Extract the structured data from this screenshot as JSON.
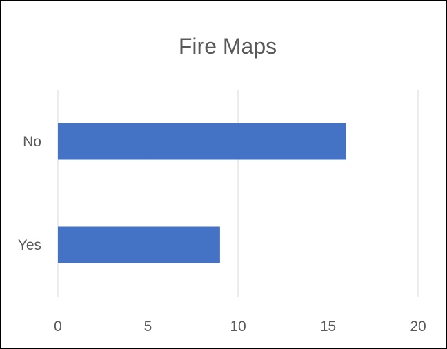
{
  "chart_data": {
    "type": "bar",
    "orientation": "horizontal",
    "title": "Fire Maps",
    "categories": [
      "Yes",
      "No"
    ],
    "values": [
      9,
      16
    ],
    "xlabel": "",
    "ylabel": "",
    "xlim": [
      0,
      20
    ],
    "x_ticks": [
      0,
      5,
      10,
      15,
      20
    ],
    "grid": "vertical",
    "legend": "none",
    "colors": {
      "bar": "#4472C4",
      "grid": "#D9D9D9",
      "text": "#595959"
    }
  }
}
